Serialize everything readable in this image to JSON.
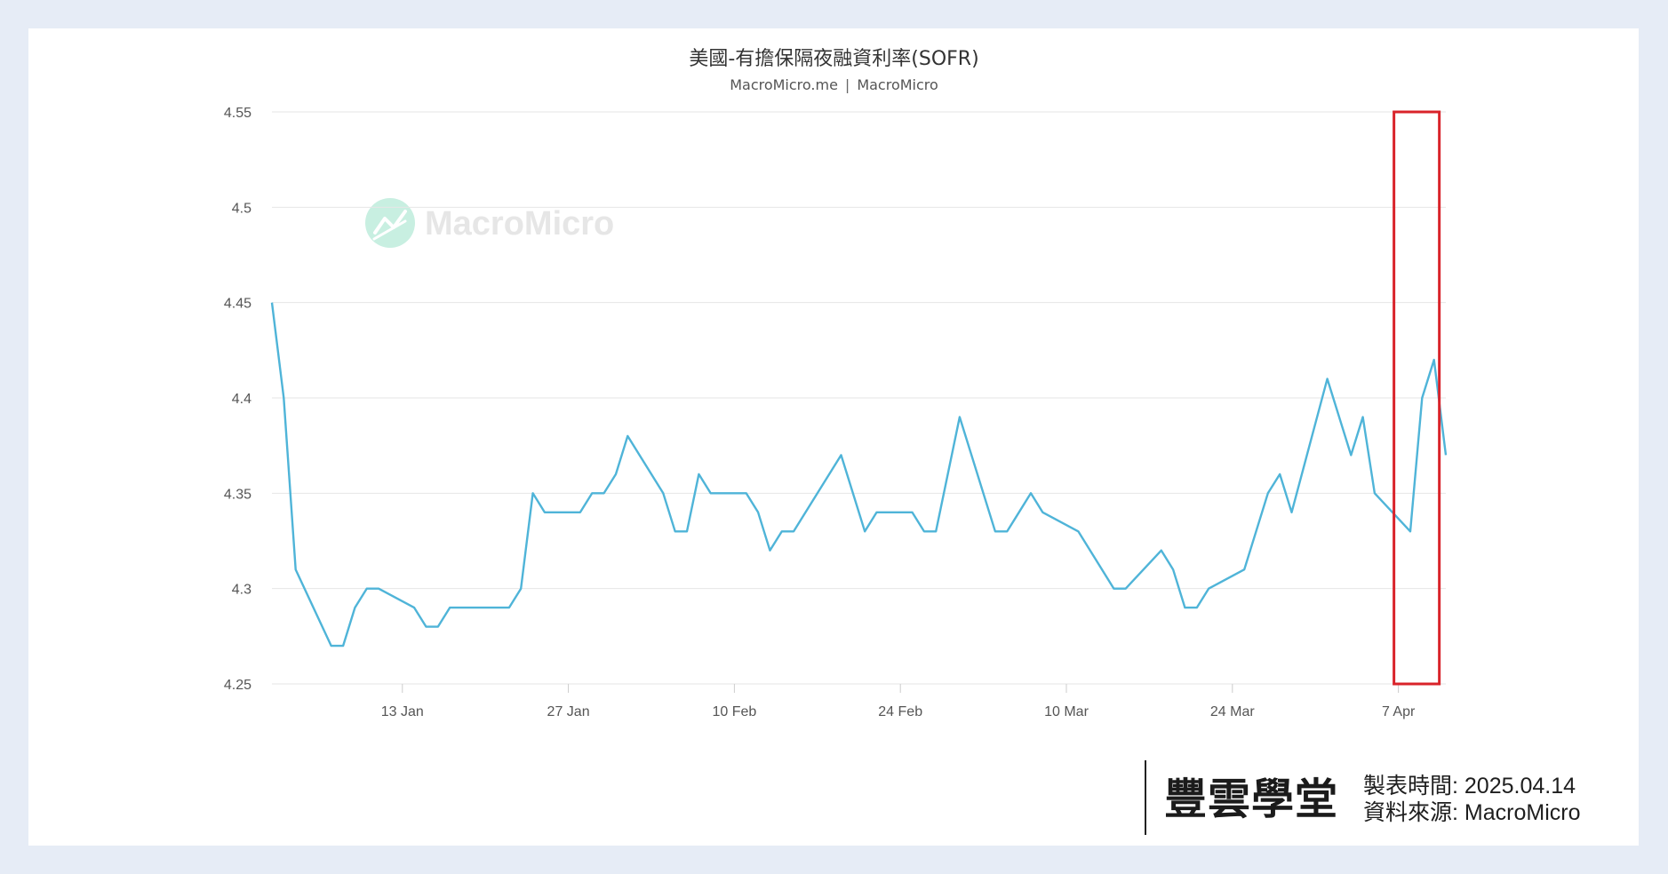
{
  "chart_data": {
    "type": "line",
    "title": "美國-有擔保隔夜融資利率(SOFR)",
    "subtitle_left": "MacroMicro.me",
    "subtitle_right": "MacroMicro",
    "watermark": "MacroMicro",
    "xlabel": "",
    "ylabel": "",
    "ylim": [
      4.25,
      4.55
    ],
    "yticks": [
      "4.25",
      "4.3",
      "4.35",
      "4.4",
      "4.45",
      "4.5",
      "4.55"
    ],
    "xlim": [
      "2025-01-02",
      "2025-04-11"
    ],
    "xticks": [
      {
        "date": "2025-01-13",
        "label": "13 Jan"
      },
      {
        "date": "2025-01-27",
        "label": "27 Jan"
      },
      {
        "date": "2025-02-10",
        "label": "10 Feb"
      },
      {
        "date": "2025-02-24",
        "label": "24 Feb"
      },
      {
        "date": "2025-03-10",
        "label": "10 Mar"
      },
      {
        "date": "2025-03-24",
        "label": "24 Mar"
      },
      {
        "date": "2025-04-07",
        "label": "7 Apr"
      }
    ],
    "grid": true,
    "line_color": "#4fb4d8",
    "series": [
      {
        "name": "",
        "points": [
          [
            "2025-01-02",
            4.45
          ],
          [
            "2025-01-03",
            4.4
          ],
          [
            "2025-01-04",
            4.31
          ],
          [
            "2025-01-07",
            4.27
          ],
          [
            "2025-01-08",
            4.27
          ],
          [
            "2025-01-09",
            4.29
          ],
          [
            "2025-01-10",
            4.3
          ],
          [
            "2025-01-11",
            4.3
          ],
          [
            "2025-01-14",
            4.29
          ],
          [
            "2025-01-15",
            4.28
          ],
          [
            "2025-01-16",
            4.28
          ],
          [
            "2025-01-17",
            4.29
          ],
          [
            "2025-01-22",
            4.29
          ],
          [
            "2025-01-23",
            4.3
          ],
          [
            "2025-01-24",
            4.35
          ],
          [
            "2025-01-25",
            4.34
          ],
          [
            "2025-01-28",
            4.34
          ],
          [
            "2025-01-29",
            4.35
          ],
          [
            "2025-01-30",
            4.35
          ],
          [
            "2025-01-31",
            4.36
          ],
          [
            "2025-02-01",
            4.38
          ],
          [
            "2025-02-04",
            4.35
          ],
          [
            "2025-02-05",
            4.33
          ],
          [
            "2025-02-06",
            4.33
          ],
          [
            "2025-02-07",
            4.36
          ],
          [
            "2025-02-08",
            4.35
          ],
          [
            "2025-02-11",
            4.35
          ],
          [
            "2025-02-12",
            4.34
          ],
          [
            "2025-02-13",
            4.32
          ],
          [
            "2025-02-14",
            4.33
          ],
          [
            "2025-02-15",
            4.33
          ],
          [
            "2025-02-19",
            4.37
          ],
          [
            "2025-02-21",
            4.33
          ],
          [
            "2025-02-22",
            4.34
          ],
          [
            "2025-02-25",
            4.34
          ],
          [
            "2025-02-26",
            4.33
          ],
          [
            "2025-02-27",
            4.33
          ],
          [
            "2025-03-01",
            4.39
          ],
          [
            "2025-03-04",
            4.33
          ],
          [
            "2025-03-05",
            4.33
          ],
          [
            "2025-03-07",
            4.35
          ],
          [
            "2025-03-08",
            4.34
          ],
          [
            "2025-03-11",
            4.33
          ],
          [
            "2025-03-14",
            4.3
          ],
          [
            "2025-03-15",
            4.3
          ],
          [
            "2025-03-18",
            4.32
          ],
          [
            "2025-03-19",
            4.31
          ],
          [
            "2025-03-20",
            4.29
          ],
          [
            "2025-03-21",
            4.29
          ],
          [
            "2025-03-22",
            4.3
          ],
          [
            "2025-03-25",
            4.31
          ],
          [
            "2025-03-27",
            4.35
          ],
          [
            "2025-03-28",
            4.36
          ],
          [
            "2025-03-29",
            4.34
          ],
          [
            "2025-04-01",
            4.41
          ],
          [
            "2025-04-03",
            4.37
          ],
          [
            "2025-04-04",
            4.39
          ],
          [
            "2025-04-05",
            4.35
          ],
          [
            "2025-04-08",
            4.33
          ],
          [
            "2025-04-09",
            4.4
          ],
          [
            "2025-04-10",
            4.42
          ],
          [
            "2025-04-11",
            4.37
          ]
        ]
      }
    ],
    "highlight": {
      "color": "#d9232a",
      "x_start": "2025-04-07",
      "x_end": "2025-04-10",
      "y_start": 4.25,
      "y_end": 4.55
    }
  },
  "branding": {
    "logo_text": "豐雲學堂",
    "chart_time_label": "製表時間:",
    "chart_time_value": "2025.04.14",
    "source_label": "資料來源:",
    "source_value": "MacroMicro"
  }
}
